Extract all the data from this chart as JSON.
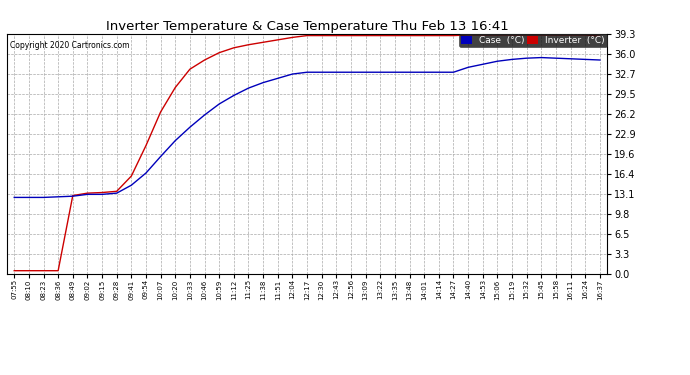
{
  "title": "Inverter Temperature & Case Temperature Thu Feb 13 16:41",
  "copyright": "Copyright 2020 Cartronics.com",
  "background_color": "#ffffff",
  "plot_bg_color": "#ffffff",
  "grid_color": "#aaaaaa",
  "ylim": [
    0.0,
    39.3
  ],
  "yticks": [
    0.0,
    3.3,
    6.5,
    9.8,
    13.1,
    16.4,
    19.6,
    22.9,
    26.2,
    29.5,
    32.7,
    36.0,
    39.3
  ],
  "xtick_labels": [
    "07:55",
    "08:10",
    "08:23",
    "08:36",
    "08:49",
    "09:02",
    "09:15",
    "09:28",
    "09:41",
    "09:54",
    "10:07",
    "10:20",
    "10:33",
    "10:46",
    "10:59",
    "11:12",
    "11:25",
    "11:38",
    "11:51",
    "12:04",
    "12:17",
    "12:30",
    "12:43",
    "12:56",
    "13:09",
    "13:22",
    "13:35",
    "13:48",
    "14:01",
    "14:14",
    "14:27",
    "14:40",
    "14:53",
    "15:06",
    "15:19",
    "15:32",
    "15:45",
    "15:58",
    "16:11",
    "16:24",
    "16:37"
  ],
  "legend_case_label": "Case  (°C)",
  "legend_inverter_label": "Inverter  (°C)",
  "legend_case_bg": "#0000bb",
  "legend_inverter_bg": "#cc0000",
  "line_case_color": "#0000bb",
  "line_inverter_color": "#cc0000",
  "case_data": [
    12.5,
    12.5,
    12.5,
    12.6,
    12.7,
    13.0,
    13.0,
    13.2,
    14.5,
    16.5,
    19.2,
    21.8,
    24.0,
    26.0,
    27.8,
    29.2,
    30.4,
    31.3,
    32.0,
    32.7,
    33.0,
    33.0,
    33.0,
    33.0,
    33.0,
    33.0,
    33.0,
    33.0,
    33.0,
    33.0,
    33.0,
    33.8,
    34.3,
    34.8,
    35.1,
    35.3,
    35.4,
    35.3,
    35.2,
    35.1,
    35.0
  ],
  "inverter_data": [
    0.5,
    0.5,
    0.5,
    0.5,
    12.8,
    13.2,
    13.3,
    13.5,
    16.0,
    21.0,
    26.5,
    30.5,
    33.5,
    35.0,
    36.2,
    37.0,
    37.5,
    37.9,
    38.3,
    38.7,
    39.0,
    39.0,
    39.0,
    39.0,
    39.0,
    39.0,
    39.0,
    39.0,
    39.0,
    39.0,
    39.0,
    39.1,
    39.1,
    39.1,
    39.1,
    39.1,
    39.1,
    39.1,
    39.1,
    39.1,
    38.9
  ]
}
